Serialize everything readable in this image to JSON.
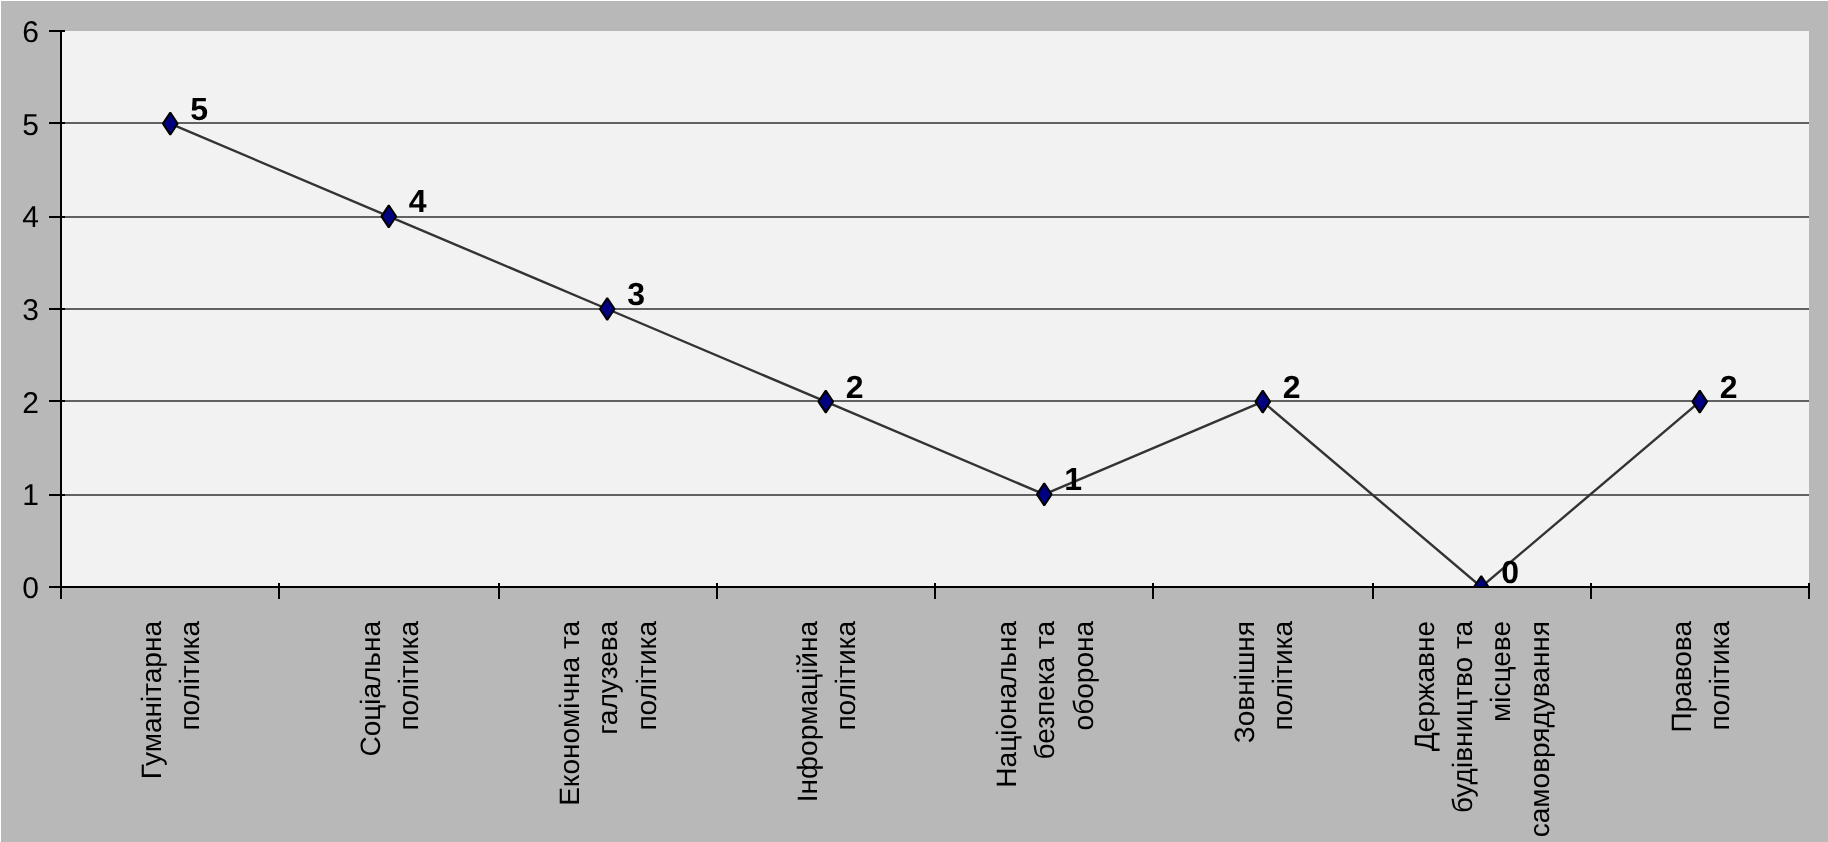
{
  "chart_data": {
    "type": "line",
    "categories": [
      "Гуманітарна\nполітика",
      "Соціальна\nполітика",
      "Економічна та\nгалузева\nполітика",
      "Інформаційна\nполітика",
      "Національна\nбезпека та\nоборона",
      "Зовнішня\nполітика",
      "Державне\nбудівництво та\nмісцеве\nсамоврядування",
      "Правова\nполітика"
    ],
    "series": [
      {
        "color": "#000080",
        "values": [
          5,
          4,
          3,
          2,
          1,
          2,
          0,
          2
        ]
      }
    ],
    "ylim": [
      0,
      6
    ],
    "yticks": [
      0,
      1,
      2,
      3,
      4,
      5,
      6
    ],
    "grid": "y",
    "marker": "diamond",
    "line_style": "solid",
    "data_labels": true
  }
}
